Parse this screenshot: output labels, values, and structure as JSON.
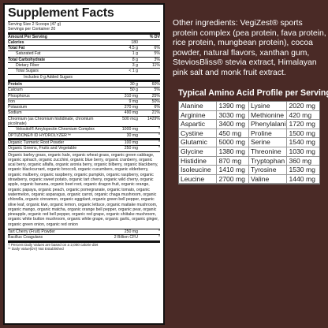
{
  "facts": {
    "title": "Supplement Facts",
    "serving_size": "Serving Size 2 Scoops (47 g)",
    "servings_per_container": "Servings per Container 20",
    "amount_header": "Amount Per Serving",
    "dv_header": "% DV",
    "nutrients": [
      {
        "name": "Calories",
        "amount": "180",
        "dv": "",
        "level": 0,
        "bold": true
      },
      {
        "name": "Total Fat",
        "amount": "4.5 g",
        "dv": "6%",
        "level": 0,
        "bold": true
      },
      {
        "name": "Saturated Fat",
        "amount": "1 g",
        "dv": "5%",
        "level": 1,
        "bold": false
      },
      {
        "name": "Total Carbohydrate",
        "amount": "8 g",
        "dv": "3%",
        "level": 0,
        "bold": true
      },
      {
        "name": "Dietary Fiber",
        "amount": "3 g",
        "dv": "11%",
        "level": 1,
        "bold": false
      },
      {
        "name": "Total Sugars",
        "amount": "< 1 g",
        "dv": "",
        "level": 1,
        "bold": false
      },
      {
        "name": "Includes 0 g Added Sugars",
        "amount": "",
        "dv": "",
        "level": 2,
        "bold": false
      },
      {
        "name": "Protein",
        "amount": "30 g",
        "dv": "60%",
        "level": 0,
        "bold": true
      },
      {
        "name": "Calcium",
        "amount": "50 g",
        "dv": "5%",
        "level": 0,
        "bold": false
      },
      {
        "name": "Phosphorus",
        "amount": "310 mg",
        "dv": "25%",
        "level": 0,
        "bold": false
      },
      {
        "name": "Iron",
        "amount": "9 mg",
        "dv": "50%",
        "level": 0,
        "bold": false
      },
      {
        "name": "Potassium",
        "amount": "270 mg",
        "dv": "6%",
        "level": 0,
        "bold": false
      },
      {
        "name": "Sodium",
        "amount": "490 mg",
        "dv": "21%",
        "level": 0,
        "bold": false
      },
      {
        "name": "Chromium (as Chromium histidinate, chromium picolinate)",
        "amount": "500 mcg",
        "dv": "1429%",
        "level": 0,
        "bold": false
      },
      {
        "name": "Velositol® Amylopectin Chromium Complex",
        "amount": "1000 mg",
        "dv": "*",
        "level": 1,
        "bold": false
      }
    ],
    "hydrolyzer": {
      "name": "OPTIZIONE® ID HYDROLYZER™",
      "amount": "30 mg",
      "dv": "*"
    },
    "botanicals": [
      {
        "name": "Organic Turmeric Root Powder",
        "amount": "100 mg",
        "dv": "*"
      },
      {
        "name": "Organic Greens, Fruits and Vegetable",
        "amount": "250 mg",
        "dv": "*"
      }
    ],
    "blend_text": "Organic barley grass, organic kale, organic wheat grass, organic green cabbage, organic spinach, organic zucchini, organic blue berry, organic cranberry, organic acai berry, organic alfalfa, organic aronia berry, organic bilberry, organic blackberry, organic blackcurrant, organic broccoli, organic cucumbers, organic elderberry, organic mulberry, organic raspberry, organic pumpkin, organic raspberry, organic strawberry, organic sweet potato, organic tart cherry, organic wild cherry, organic apple, organic banana, organic beet root, organic dragon fruit, organic orange, organic papaya, organic peach, organic pomegranate, organic tomato, organic watermelon, organic asparagus, organic carrot, organic chaga mushroom, organic chlorella, organic cinnamon, organic eggplant, organic green bell pepper, organic olive leaf, organic kiwi, organic lemon, organic lettuce, organic maitake mushroom, organic mango, organic matcha, organic orange bell pepper, organic pear, organic pineapple, organic red bell pepper, organic red grape, organic shiitake mushroom, organic white button mushroom, organic white grape, organic garlic, organic ginger, organic green onion, organic red onion",
    "cherry": {
      "name": "Tart Cherry (Fruit) Powder",
      "amount": "250 mg",
      "dv": "*"
    },
    "bacillus": {
      "name": "Bacillus Coagulans",
      "amount": "2 Billion CFU",
      "dv": "*"
    },
    "footnote1": "† Percent Daily Values are based on a 2,000 calorie diet",
    "footnote2": "** Daily Value(DV) Not Established"
  },
  "ingredients": {
    "text": "Other ingredients: VegiZest® sports protein complex (pea protein, fava protein, rice protein, mungbean protein), cocoa powder, natural flavors, xanthan gum, SteviosBliss® stevia extract, Himalayan pink salt and monk fruit extract."
  },
  "amino": {
    "title": "Typical Amino Acid Profile per Serving",
    "rows": [
      [
        "Alanine",
        "1390 mg",
        "Lysine",
        "2020 mg"
      ],
      [
        "Arginine",
        "3030 mg",
        "Methionine",
        "420 mg"
      ],
      [
        "Aspartic",
        "3400 mg",
        "Phenylalanine",
        "1720 mg"
      ],
      [
        "Cystine",
        "450 mg",
        "Proline",
        "1500 mg"
      ],
      [
        "Glutamic",
        "5000 mg",
        "Serine",
        "1540 mg"
      ],
      [
        "Glycine",
        "1380 mg",
        "Threonine",
        "1030 mg"
      ],
      [
        "Histidine",
        "870 mg",
        "Tryptophan",
        "360 mg"
      ],
      [
        "Isoleucine",
        "1410 mg",
        "Tyrosine",
        "1530 mg"
      ],
      [
        "Leucine",
        "2700 mg",
        "Valine",
        "1440 mg"
      ]
    ]
  }
}
